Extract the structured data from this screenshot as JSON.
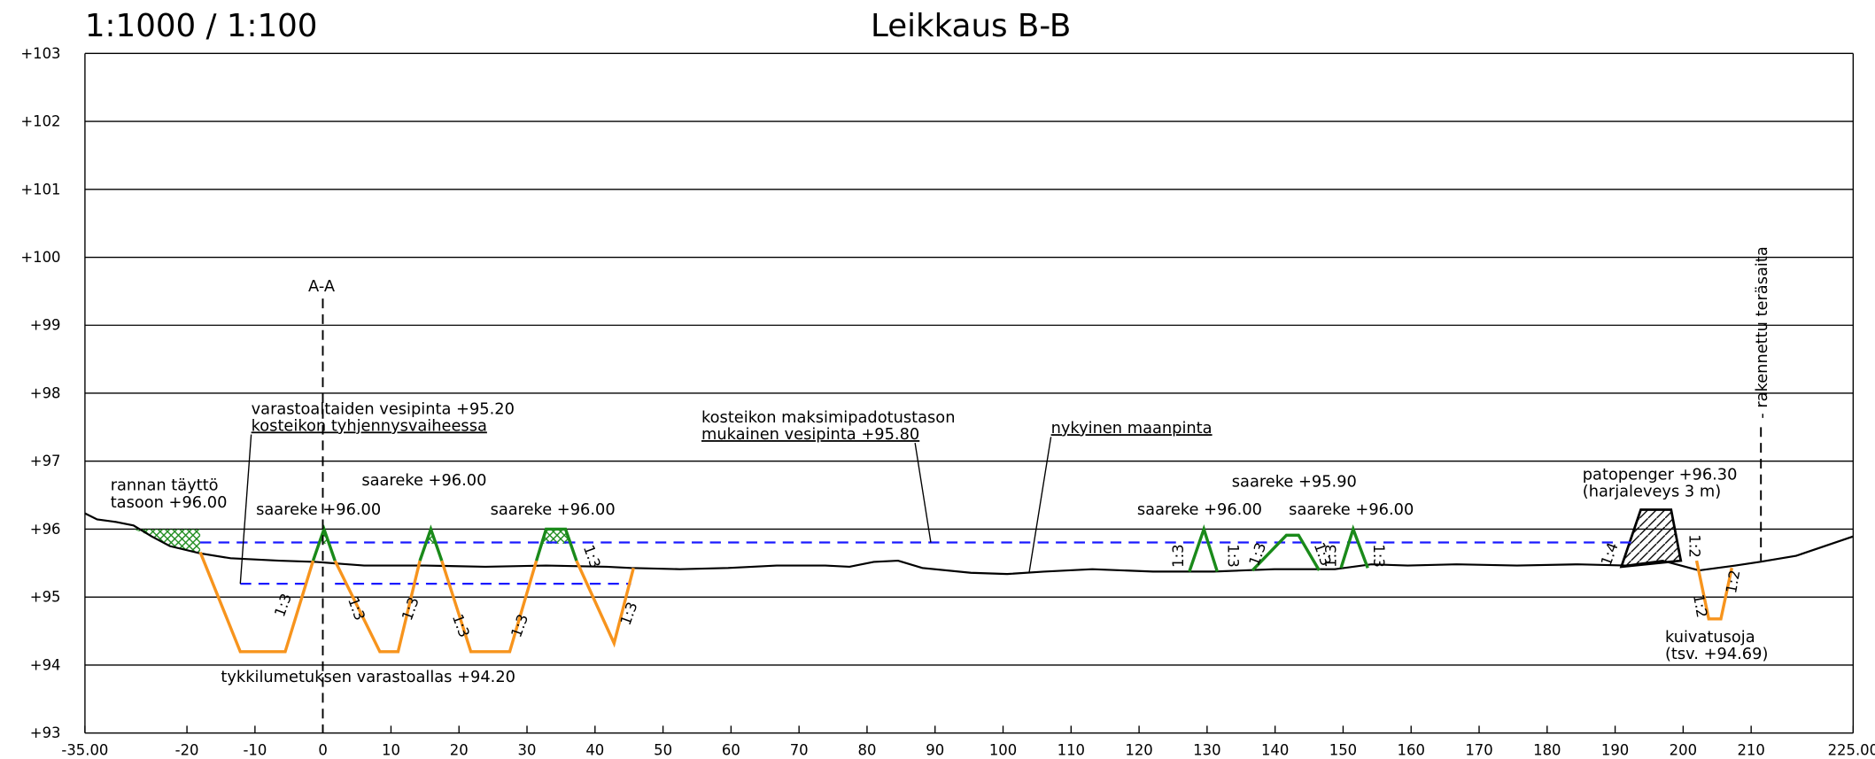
{
  "header": {
    "scale": "1:1000 / 1:100",
    "title": "Leikkaus B-B"
  },
  "axes": {
    "xticks": [
      {
        "value": -35,
        "label": "-35.00"
      },
      -20,
      -10,
      0,
      10,
      20,
      30,
      40,
      50,
      60,
      70,
      80,
      90,
      100,
      110,
      120,
      130,
      140,
      150,
      160,
      170,
      180,
      190,
      200,
      210,
      {
        "value": 225,
        "label": "225.00"
      }
    ],
    "yticks": [
      {
        "value": 93,
        "label": "+93"
      },
      {
        "value": 94,
        "label": "+94"
      },
      {
        "value": 95,
        "label": "+95"
      },
      {
        "value": 96,
        "label": "+96"
      },
      {
        "value": 97,
        "label": "+97"
      },
      {
        "value": 98,
        "label": "+98"
      },
      {
        "value": 99,
        "label": "+99"
      },
      {
        "value": 100,
        "label": "+100"
      },
      {
        "value": 101,
        "label": "+101"
      },
      {
        "value": 102,
        "label": "+102"
      },
      {
        "value": 103,
        "label": "+103"
      }
    ]
  },
  "annotations": [
    [
      "varastoaltaiden vesipinta +95.20",
      "kosteikon tyhjennysvaiheessa"
    ],
    [
      "kosteikon maksimipadotustason",
      "mukainen vesipinta +95.80"
    ],
    [
      "nykyinen maanpinta"
    ],
    [
      "rannan täyttö",
      "tasoon +96.00"
    ],
    [
      "saareke +96.00"
    ],
    [
      "saareke +96.00"
    ],
    [
      "saareke +96.00"
    ],
    [
      "saareke +95.90"
    ],
    [
      "saareke +96.00"
    ],
    [
      "saareke +96.00"
    ],
    [
      "patopenger +96.30",
      "(harjaleveys 3 m)"
    ],
    [
      "tykkilumetuksen varastoallas +94.20"
    ],
    [
      "kuivatusoja",
      "(tsv. +94.69)"
    ],
    [
      "A-A"
    ]
  ],
  "fence": "- rakennettu teräsaita",
  "slopes": [
    "1:3",
    "1:3",
    "1:3",
    "1:3",
    "1:3",
    "1:3",
    "1:3",
    "1:3",
    "1:3",
    "1:3",
    "1:3",
    "1:3",
    "1:3",
    "1:4",
    "1:2",
    "1:2",
    "1:2"
  ]
}
